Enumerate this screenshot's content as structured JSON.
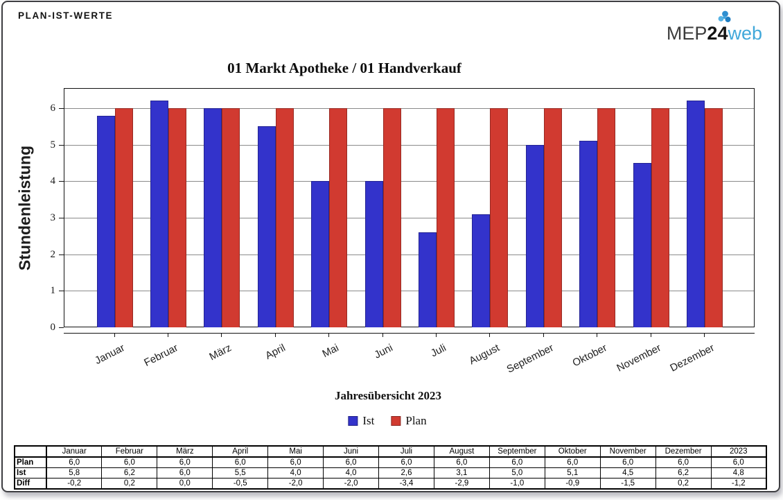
{
  "page": {
    "report_label": "PLAN-IST-WERTE"
  },
  "logo": {
    "text_mep": "MEP",
    "text_24": "24",
    "text_web": "web",
    "web_color": "#41a8da",
    "icon": "puzzle-cluster-icon"
  },
  "chart_data": {
    "type": "bar",
    "title": "01 Markt Apotheke / 01 Handverkauf",
    "ylabel": "Stundenleistung",
    "xlabel": "Jahresübersicht 2023",
    "categories": [
      "Januar",
      "Februar",
      "März",
      "April",
      "Mai",
      "Juni",
      "Juli",
      "August",
      "September",
      "Oktober",
      "November",
      "Dezember"
    ],
    "series": [
      {
        "name": "Ist",
        "color": "#3333cb",
        "values": [
          5.8,
          6.2,
          6.0,
          5.5,
          4.0,
          4.0,
          2.6,
          3.1,
          5.0,
          5.1,
          4.5,
          6.2
        ]
      },
      {
        "name": "Plan",
        "color": "#d13a30",
        "values": [
          6.0,
          6.0,
          6.0,
          6.0,
          6.0,
          6.0,
          6.0,
          6.0,
          6.0,
          6.0,
          6.0,
          6.0
        ]
      }
    ],
    "ylim": [
      0,
      6.55
    ],
    "yticks": [
      0,
      1,
      2,
      3,
      4,
      5,
      6
    ],
    "grid": true,
    "legend_position": "bottom"
  },
  "table": {
    "col_headers": [
      "",
      "Januar",
      "Februar",
      "März",
      "April",
      "Mai",
      "Juni",
      "Juli",
      "August",
      "September",
      "Oktober",
      "November",
      "Dezember",
      "2023"
    ],
    "rows": [
      {
        "label": "Plan",
        "values": [
          "6,0",
          "6,0",
          "6,0",
          "6,0",
          "6,0",
          "6,0",
          "6,0",
          "6,0",
          "6,0",
          "6,0",
          "6,0",
          "6,0",
          "6,0"
        ]
      },
      {
        "label": "Ist",
        "values": [
          "5,8",
          "6,2",
          "6,0",
          "5,5",
          "4,0",
          "4,0",
          "2,6",
          "3,1",
          "5,0",
          "5,1",
          "4,5",
          "6,2",
          "4,8"
        ]
      },
      {
        "label": "Diff",
        "values": [
          "-0,2",
          "0,2",
          "0,0",
          "-0,5",
          "-2,0",
          "-2,0",
          "-3,4",
          "-2,9",
          "-1,0",
          "-0,9",
          "-1,5",
          "0,2",
          "-1,2"
        ]
      }
    ]
  }
}
